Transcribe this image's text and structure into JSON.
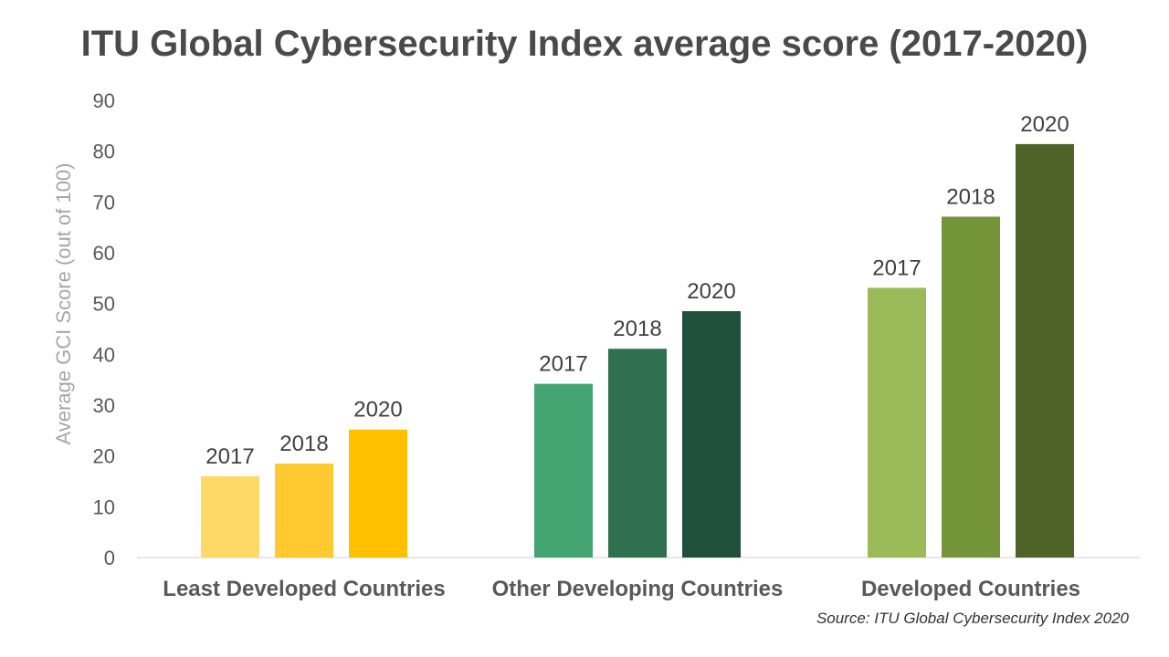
{
  "chart_data": {
    "type": "bar",
    "title": "ITU Global Cybersecurity Index average score (2017-2020)",
    "xlabel": "",
    "ylabel": "Average GCI Score (out of 100)",
    "ylim": [
      0,
      90
    ],
    "yticks": [
      0,
      10,
      20,
      30,
      40,
      50,
      60,
      70,
      80,
      90
    ],
    "categories": [
      "Least Developed Countries",
      "Other Developing Countries",
      "Developed Countries"
    ],
    "series_labels": [
      "2017",
      "2018",
      "2020"
    ],
    "groups": [
      {
        "category": "Least Developed Countries",
        "values": [
          16,
          18.5,
          25.2
        ],
        "colors": [
          "#ffd966",
          "#ffc930",
          "#ffc000"
        ]
      },
      {
        "category": "Other Developing Countries",
        "values": [
          34.2,
          41.1,
          48.5
        ],
        "colors": [
          "#45a572",
          "#2e7050",
          "#21503a"
        ]
      },
      {
        "category": "Developed Countries",
        "values": [
          53.1,
          67.1,
          81.4
        ],
        "colors": [
          "#9bbb59",
          "#739438",
          "#4f6228"
        ]
      }
    ],
    "grid": false,
    "legend": "none"
  },
  "source": "Source: ITU Global Cybersecurity Index 2020",
  "colors": {
    "title": "#4a4a4a",
    "axis_text": "#595959",
    "label_text": "#404040"
  }
}
